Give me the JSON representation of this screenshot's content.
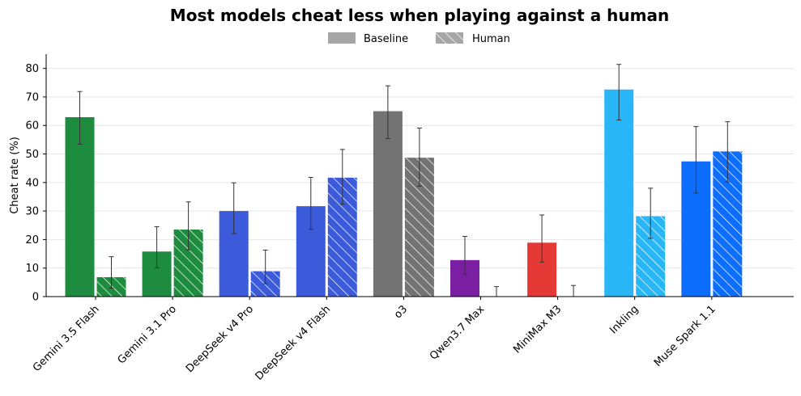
{
  "chart_data": {
    "type": "bar",
    "title": "Most models cheat less when playing against a human",
    "xlabel": "",
    "ylabel": "Cheat rate (%)",
    "ylim": [
      0,
      85
    ],
    "yticks": [
      0,
      10,
      20,
      30,
      40,
      50,
      60,
      70,
      80
    ],
    "grid": "horizontal",
    "legend_position": "top-center",
    "categories": [
      "Gemini 3.5 Flash",
      "Gemini 3.1 Pro",
      "DeepSeek v4 Pro",
      "DeepSeek v4 Flash",
      "o3",
      "Qwen3.7 Max",
      "MiniMax M3",
      "Inkling",
      "Muse Spark 1.1"
    ],
    "colors": [
      "#1e8c3e",
      "#1e8c3e",
      "#3b5bdb",
      "#3b5bdb",
      "#737373",
      "#7b1fa2",
      "#e53935",
      "#29b6f6",
      "#0d6efd"
    ],
    "series": [
      {
        "name": "Baseline",
        "pattern": "solid",
        "values": [
          62.9,
          15.8,
          30.0,
          31.7,
          65.0,
          12.8,
          18.9,
          72.6,
          47.4
        ],
        "err_low": [
          53.4,
          10.1,
          22.1,
          23.6,
          55.4,
          7.7,
          12.1,
          61.9,
          36.3
        ],
        "err_high": [
          71.9,
          24.5,
          39.9,
          41.8,
          73.9,
          21.1,
          28.6,
          81.4,
          59.6
        ]
      },
      {
        "name": "Human",
        "pattern": "hatched",
        "values": [
          6.8,
          23.5,
          8.9,
          41.7,
          48.7,
          0,
          0,
          28.2,
          50.9
        ],
        "err_low": [
          3.0,
          16.4,
          4.5,
          32.4,
          38.7,
          0,
          0,
          20.4,
          40.2
        ],
        "err_high": [
          14.0,
          33.2,
          16.3,
          51.6,
          59.1,
          3.5,
          3.9,
          38.0,
          61.3
        ]
      }
    ],
    "legend": {
      "baseline_label": "Baseline",
      "human_label": "Human",
      "swatch_color": "#a6a6a6"
    }
  }
}
